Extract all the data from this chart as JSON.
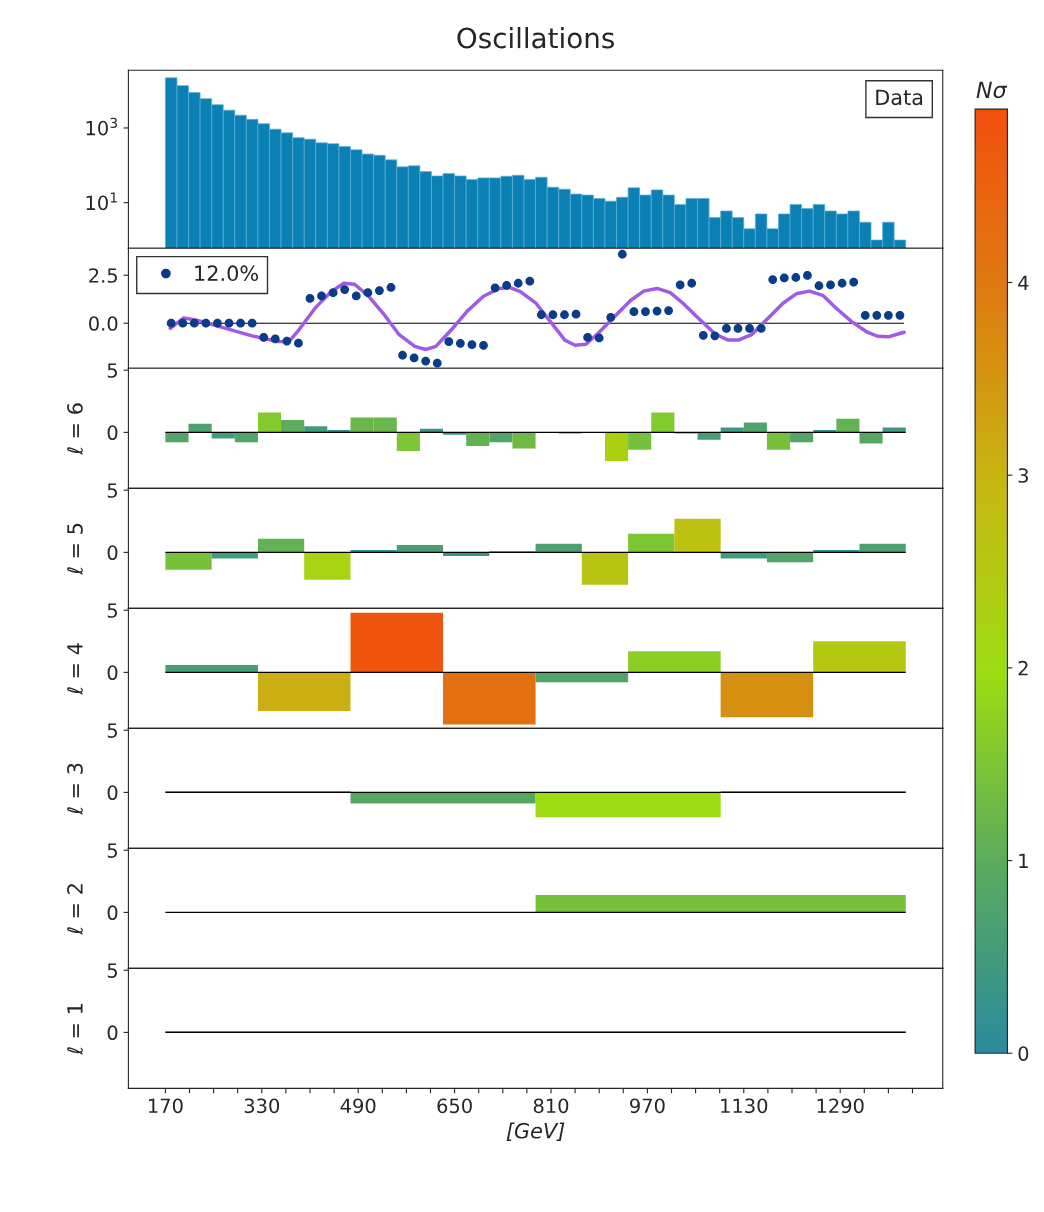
{
  "chart_data": [
    {
      "type": "histogram",
      "title": "Oscillations",
      "log": "y",
      "legend": "top right",
      "tick_labels": "y",
      "series": [
        {
          "name": "Data",
          "color": "#0a80b4",
          "values": [
            22000,
            13600,
            8900,
            6100,
            4200,
            3000,
            2200,
            1700,
            1300,
            930,
            740,
            550,
            500,
            400,
            380,
            320,
            260,
            200,
            185,
            140,
            91,
            97,
            68,
            52,
            60,
            52,
            42,
            46,
            46,
            51,
            54,
            42,
            48,
            26,
            23,
            17,
            16,
            13,
            11,
            14,
            25,
            16,
            22,
            16,
            9,
            13,
            13,
            4,
            6,
            4,
            2,
            5,
            2,
            5,
            9,
            7,
            9,
            6,
            5,
            6,
            3,
            1,
            3,
            1
          ]
        }
      ],
      "bins": [
        170,
        189.2,
        208.4,
        227.6,
        246.8,
        266,
        285.2,
        304.4,
        323.6,
        342.8,
        362,
        381.2,
        400.4,
        419.6,
        438.8,
        458,
        477.2,
        496.4,
        515.6,
        534.8,
        554,
        573.2,
        592.4,
        611.6,
        630.8,
        650,
        669.2,
        688.4,
        707.6,
        726.8,
        746,
        765.2,
        784.4,
        803.6,
        822.8,
        842,
        861.2,
        880.4,
        899.6,
        918.8,
        938,
        957.2,
        976.4,
        995.6,
        1014.8,
        1034,
        1053.2,
        1072.4,
        1091.6,
        1110.8,
        1130,
        1149.2,
        1168.4,
        1187.6,
        1206.8,
        1226,
        1245.2,
        1264.4,
        1283.6,
        1302.8,
        1322,
        1341.2,
        1360.4,
        1379.6,
        1398.8
      ],
      "xlim": [
        108.6,
        1460.2
      ],
      "ylim": [
        0.6,
        35000
      ],
      "yticks": [
        {
          "value": 10,
          "label": "10$^{1}$"
        },
        {
          "value": 1000,
          "label": "10$^{3}$"
        }
      ]
    },
    {
      "type": "scatter",
      "legend": "top left",
      "tick_labels": "y",
      "series": [
        {
          "name": "12.0%",
          "type": "scatter",
          "marker": "circle",
          "color": "#0b3c8a",
          "x": [
            179.6,
            198.8,
            218,
            237.2,
            256.4,
            275.6,
            294.8,
            314,
            333.2,
            352.4,
            371.6,
            390.8,
            410,
            429.2,
            448.4,
            467.6,
            486.8,
            506,
            525.2,
            544.4,
            563.6,
            582.8,
            602,
            621.2,
            640.4,
            659.6,
            678.8,
            698,
            717.2,
            736.4,
            755.6,
            774.8,
            794,
            813.2,
            832.4,
            851.6,
            870.8,
            890,
            909.2,
            928.4,
            947.6,
            966.8,
            986,
            1005.2,
            1024.4,
            1043.6,
            1062.8,
            1082,
            1101.2,
            1120.4,
            1139.6,
            1158.8,
            1178,
            1197.2,
            1216.4,
            1235.6,
            1254.8,
            1274,
            1293.2,
            1312.4,
            1331.6,
            1350.8,
            1370,
            1389.2
          ],
          "values": [
            0,
            0,
            0,
            0,
            0,
            0,
            0,
            0,
            -0.74,
            -0.82,
            -0.93,
            -1.04,
            1.29,
            1.42,
            1.59,
            1.75,
            1.42,
            1.59,
            1.7,
            1.86,
            -1.67,
            -1.81,
            -1.97,
            -2.08,
            -0.96,
            -1.05,
            -1.12,
            -1.15,
            1.84,
            1.97,
            2.08,
            2.19,
            0.44,
            0.44,
            0.44,
            0.47,
            -0.74,
            -0.77,
            0.3,
            3.59,
            0.6,
            0.6,
            0.63,
            0.66,
            2.0,
            2.08,
            -0.63,
            -0.66,
            -0.27,
            -0.27,
            -0.27,
            -0.27,
            2.27,
            2.36,
            2.38,
            2.49,
            1.95,
            2.0,
            2.08,
            2.14,
            0.41,
            0.41,
            0.41,
            0.41
          ]
        },
        {
          "type": "line",
          "color": "#a05ae6",
          "x": [
            178,
            200,
            222,
            270,
            314,
            357,
            375,
            392,
            418,
            445,
            466,
            484,
            506,
            532,
            558,
            584,
            602,
            619,
            645,
            671,
            698,
            724,
            741,
            759,
            785,
            811,
            833,
            850,
            868,
            890,
            916,
            942,
            964,
            986,
            1008,
            1029,
            1056,
            1082,
            1104,
            1121,
            1143,
            1169,
            1195,
            1217,
            1239,
            1261,
            1282,
            1309,
            1335,
            1352,
            1370,
            1396
          ],
          "values": [
            -0.27,
            0.27,
            0.16,
            -0.27,
            -0.66,
            -0.96,
            -0.96,
            -0.33,
            0.77,
            1.64,
            2.08,
            2.03,
            1.45,
            0.49,
            -0.6,
            -1.21,
            -1.37,
            -1.21,
            -0.33,
            0.63,
            1.4,
            1.81,
            1.86,
            1.64,
            1.04,
            0,
            -0.88,
            -1.15,
            -1.1,
            -0.47,
            0.36,
            1.18,
            1.67,
            1.81,
            1.59,
            1.04,
            0.22,
            -0.55,
            -0.88,
            -0.88,
            -0.6,
            0.22,
            1.04,
            1.53,
            1.67,
            1.45,
            0.82,
            0.08,
            -0.47,
            -0.68,
            -0.71,
            -0.47
          ]
        }
      ],
      "ref_lines": [
        {
          "axis": "y",
          "value": 0
        }
      ],
      "xlim": [
        108.6,
        1460.2
      ],
      "ylim": [
        -2.35,
        3.9
      ],
      "yticks": [
        {
          "value": 0,
          "label": "0.0"
        },
        2.5
      ]
    },
    {
      "type": "histogram",
      "ylabel": "ℓ = 6",
      "tick_labels": "y",
      "clim": [
        0,
        4.9
      ],
      "cticks": [
        0,
        1,
        2,
        3,
        4
      ],
      "clabel": "Nσ",
      "bins": [
        170,
        208.4,
        246.8,
        285.2,
        323.6,
        362,
        400.4,
        438.8,
        477.2,
        515.6,
        554,
        592.4,
        630.8,
        669.2,
        707.6,
        746,
        784.4,
        822.8,
        861.2,
        899.6,
        938,
        976.4,
        1014.8,
        1053.2,
        1091.6,
        1130,
        1168.4,
        1206.8,
        1245.2,
        1283.6,
        1322,
        1360.4,
        1398.8
      ],
      "values": [
        -0.8,
        0.7,
        -0.5,
        -0.8,
        1.6,
        1.0,
        0.5,
        0.2,
        1.2,
        1.2,
        -1.5,
        0.3,
        -0.2,
        -1.1,
        -0.8,
        -1.3,
        0,
        -0.1,
        0,
        -2.3,
        -1.4,
        1.6,
        -0.1,
        -0.6,
        0.4,
        0.8,
        -1.4,
        -0.8,
        0.2,
        1.1,
        -0.9,
        0.4
      ],
      "cvalues": [
        0.8,
        0.7,
        0.5,
        0.8,
        1.6,
        1.0,
        0.5,
        0.2,
        1.2,
        1.2,
        1.5,
        0.3,
        0.2,
        1.1,
        0.8,
        1.3,
        null,
        0.1,
        null,
        2.3,
        1.4,
        1.6,
        0.1,
        0.6,
        0.4,
        0.8,
        1.4,
        0.8,
        0.2,
        1.1,
        0.9,
        0.4
      ],
      "ref_lines": [
        {
          "axis": "y",
          "value": 0
        }
      ],
      "xlim": [
        108.6,
        1460.2
      ],
      "ylim": [
        -4.5,
        5.15
      ],
      "yticks": [
        0,
        5
      ]
    },
    {
      "type": "histogram",
      "ylabel": "ℓ = 5",
      "tick_labels": "y",
      "bins": [
        170,
        246.8,
        323.6,
        400.4,
        477.2,
        554,
        630.8,
        707.6,
        784.4,
        861.2,
        938,
        1014.8,
        1091.6,
        1168.4,
        1245.2,
        1322,
        1398.8
      ],
      "values": [
        -1.4,
        -0.5,
        1.1,
        -2.2,
        0.2,
        0.6,
        -0.3,
        0.1,
        0.7,
        -2.6,
        1.5,
        2.7,
        -0.5,
        -0.8,
        0.2,
        0.7
      ],
      "colors": [
        "#76c03c",
        "#429b7b",
        "#62b153",
        "#a7d312",
        "#34918f",
        "#479e75",
        "#399488",
        "#2f8d95",
        "#4ca26e",
        "#b8c412",
        "#7dc535",
        "#bcc112",
        "#429b7b",
        "#51a568",
        "#34918f",
        "#4ca26e"
      ],
      "ref_lines": [
        {
          "axis": "y",
          "value": 0
        }
      ],
      "xlim": [
        108.6,
        1460.2
      ],
      "ylim": [
        -4.5,
        5.15
      ],
      "yticks": [
        0,
        5
      ]
    },
    {
      "type": "histogram",
      "ylabel": "ℓ = 4",
      "tick_labels": "y",
      "bins": [
        170,
        323.6,
        477.2,
        630.8,
        784.4,
        938,
        1091.6,
        1245.2,
        1398.8
      ],
      "values": [
        0.6,
        -3.1,
        4.8,
        -4.2,
        -0.8,
        1.7,
        -3.6,
        2.5
      ],
      "colors": [
        "#479e75",
        "#cbae12",
        "#f0550f",
        "#e37010",
        "#51a568",
        "#8bcf26",
        "#d69011",
        "#b4c812"
      ],
      "ref_lines": [
        {
          "axis": "y",
          "value": 0
        }
      ],
      "xlim": [
        108.6,
        1460.2
      ],
      "ylim": [
        -4.5,
        5.15
      ],
      "yticks": [
        0,
        5
      ]
    },
    {
      "type": "histogram",
      "ylabel": "ℓ = 3",
      "tick_labels": "y",
      "bins": [
        170,
        477.2,
        784.4,
        1091.6,
        1398.8
      ],
      "values": [
        0.1,
        -0.9,
        -2.0,
        0.1
      ],
      "colors": [
        "#2f8d95",
        "#56a861",
        "#9edb12",
        "#2f8d95"
      ],
      "ref_lines": [
        {
          "axis": "y",
          "value": 0
        }
      ],
      "xlim": [
        108.6,
        1460.2
      ],
      "ylim": [
        -4.5,
        5.15
      ],
      "yticks": [
        0,
        5
      ]
    },
    {
      "type": "histogram",
      "ylabel": "ℓ = 2",
      "tick_labels": "y",
      "bins": [
        170,
        784.4,
        1398.8
      ],
      "values": [
        0,
        1.4
      ],
      "colors": [
        "#2a8a9c",
        "#76c03c"
      ],
      "ref_lines": [
        {
          "axis": "y",
          "value": 0
        }
      ],
      "xlim": [
        108.6,
        1460.2
      ],
      "ylim": [
        -4.5,
        5.15
      ],
      "yticks": [
        0,
        5
      ]
    },
    {
      "type": "histogram",
      "ylabel": "ℓ = 1",
      "xlabel": "[GeV]",
      "bins": [
        170,
        1398.8
      ],
      "values": [
        0.1
      ],
      "colors": [
        "#2f8d95"
      ],
      "ref_lines": [
        {
          "axis": "y",
          "value": 0
        }
      ],
      "xlim": [
        108.6,
        1460.2
      ],
      "ylim": [
        -4.5,
        5.15
      ],
      "yticks": [
        0,
        5
      ],
      "xticks": [
        170,
        {
          "value": 210,
          "label": null
        },
        {
          "value": 250,
          "label": null
        },
        {
          "value": 290,
          "label": null
        },
        330,
        {
          "value": 370,
          "label": null
        },
        {
          "value": 410,
          "label": null
        },
        {
          "value": 450,
          "label": null
        },
        490,
        {
          "value": 530,
          "label": null
        },
        {
          "value": 570,
          "label": null
        },
        {
          "value": 610,
          "label": null
        },
        650,
        {
          "value": 690,
          "label": null
        },
        {
          "value": 730,
          "label": null
        },
        {
          "value": 770,
          "label": null
        },
        810,
        {
          "value": 850,
          "label": null
        },
        {
          "value": 890,
          "label": null
        },
        {
          "value": 930,
          "label": null
        },
        970,
        {
          "value": 1010,
          "label": null
        },
        {
          "value": 1050,
          "label": null
        },
        {
          "value": 1090,
          "label": null
        },
        1130,
        {
          "value": 1170,
          "label": null
        },
        {
          "value": 1210,
          "label": null
        },
        {
          "value": 1250,
          "label": null
        },
        1290,
        {
          "value": 1330,
          "label": null
        },
        {
          "value": 1370,
          "label": null
        },
        {
          "value": 1410,
          "label": null
        }
      ]
    }
  ]
}
